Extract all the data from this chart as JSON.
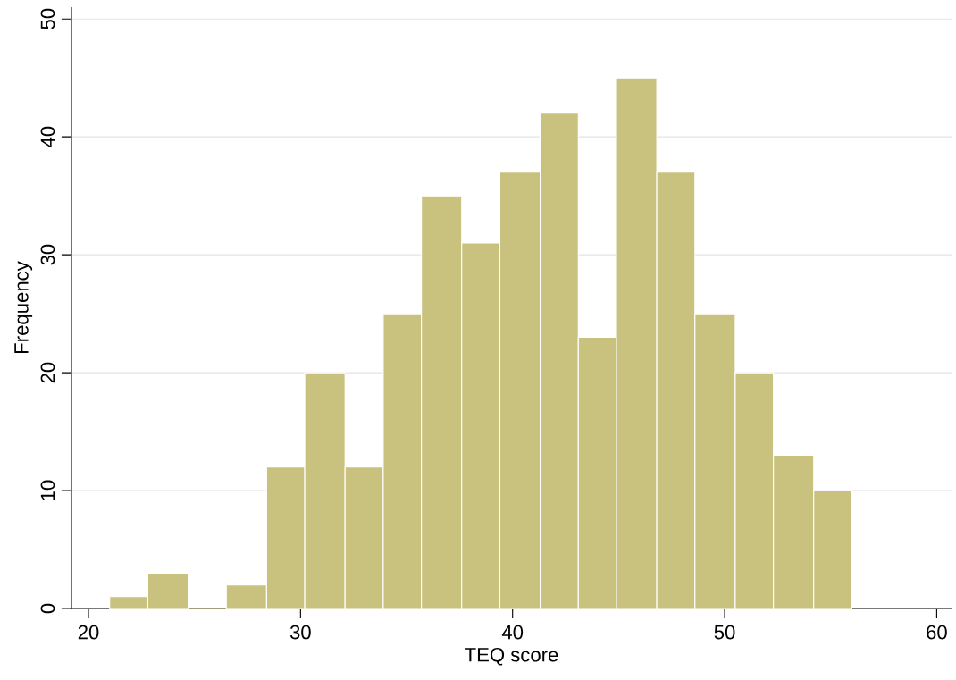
{
  "chart_data": {
    "type": "histogram",
    "xlabel": "TEQ score",
    "ylabel": "Frequency",
    "bins": [
      21,
      22.8,
      24.7,
      26.5,
      28.4,
      30.2,
      32.1,
      33.9,
      35.7,
      37.6,
      39.4,
      41.3,
      43.1,
      44.9,
      46.8,
      48.6,
      50.5,
      52.3,
      54.2,
      56
    ],
    "values": [
      1,
      3,
      0,
      2,
      12,
      20,
      12,
      25,
      35,
      31,
      37,
      42,
      23,
      45,
      37,
      25,
      20,
      13,
      10
    ],
    "color": "#c9c27f",
    "xlim": [
      19.2,
      60.7
    ],
    "ylim": [
      0,
      51
    ],
    "xticks": [
      20,
      30,
      40,
      50,
      60
    ],
    "yticks": [
      0,
      10,
      20,
      30,
      40,
      50
    ],
    "grid": "y"
  }
}
